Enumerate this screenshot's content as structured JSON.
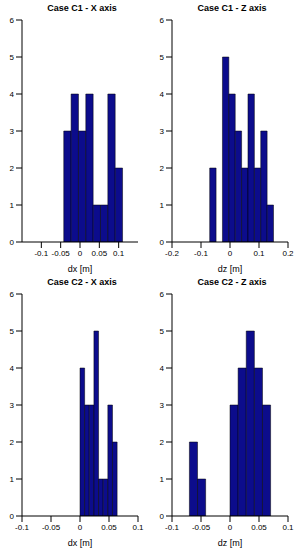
{
  "chart_data": [
    {
      "type": "histogram",
      "title": "Case C1 - X axis",
      "x_label": "dx [m]",
      "bins": [
        -0.042,
        -0.023,
        -0.004,
        0.015,
        0.034,
        0.053,
        0.072,
        0.091,
        0.11
      ],
      "counts": [
        3,
        4,
        3,
        4,
        1,
        1,
        4,
        2
      ],
      "color": "#0c0c8c",
      "xlim": [
        -0.15,
        0.15
      ],
      "xticks": [
        -0.1,
        -0.05,
        0,
        0.05,
        0.1
      ],
      "ylim": [
        0,
        6
      ],
      "yticks": [
        0,
        1,
        2,
        3,
        4,
        5,
        6
      ]
    },
    {
      "type": "histogram",
      "title": "Case C1 - Z axis",
      "x_label": "dz [m]",
      "bins": [
        -0.07,
        -0.048,
        -0.026,
        -0.004,
        0.018,
        0.04,
        0.062,
        0.084,
        0.106,
        0.128,
        0.15
      ],
      "counts": [
        2,
        0,
        5,
        4,
        3,
        2,
        4,
        2,
        3,
        1
      ],
      "color": "#0c0c8c",
      "xlim": [
        -0.2,
        0.2
      ],
      "xticks": [
        -0.2,
        -0.1,
        0,
        0.1,
        0.2
      ],
      "ylim": [
        0,
        6
      ],
      "yticks": [
        0,
        1,
        2,
        3,
        4,
        5,
        6
      ]
    },
    {
      "type": "histogram",
      "title": "Case C2 - X axis",
      "x_label": "dx [m]",
      "bins": [
        0,
        0.008,
        0.016,
        0.024,
        0.032,
        0.04,
        0.048,
        0.056,
        0.064
      ],
      "counts": [
        4,
        3,
        3,
        5,
        1,
        1,
        3,
        2
      ],
      "color": "#0c0c8c",
      "xlim": [
        -0.1,
        0.1
      ],
      "xticks": [
        -0.1,
        -0.05,
        0,
        0.05,
        0.1
      ],
      "ylim": [
        0,
        6
      ],
      "yticks": [
        0,
        1,
        2,
        3,
        4,
        5,
        6
      ]
    },
    {
      "type": "histogram",
      "title": "Case C2 - Z axis",
      "x_label": "dz [m]",
      "bins": [
        -0.07,
        -0.056,
        -0.042,
        -0.028,
        -0.014,
        0,
        0.014,
        0.028,
        0.042,
        0.056,
        0.07
      ],
      "counts": [
        2,
        1,
        0,
        0,
        0,
        3,
        4,
        5,
        4,
        3
      ],
      "color": "#0c0c8c",
      "xlim": [
        -0.1,
        0.1
      ],
      "xticks": [
        -0.1,
        -0.05,
        0,
        0.05,
        0.1
      ],
      "ylim": [
        0,
        6
      ],
      "yticks": [
        0,
        1,
        2,
        3,
        4,
        5,
        6
      ]
    }
  ]
}
